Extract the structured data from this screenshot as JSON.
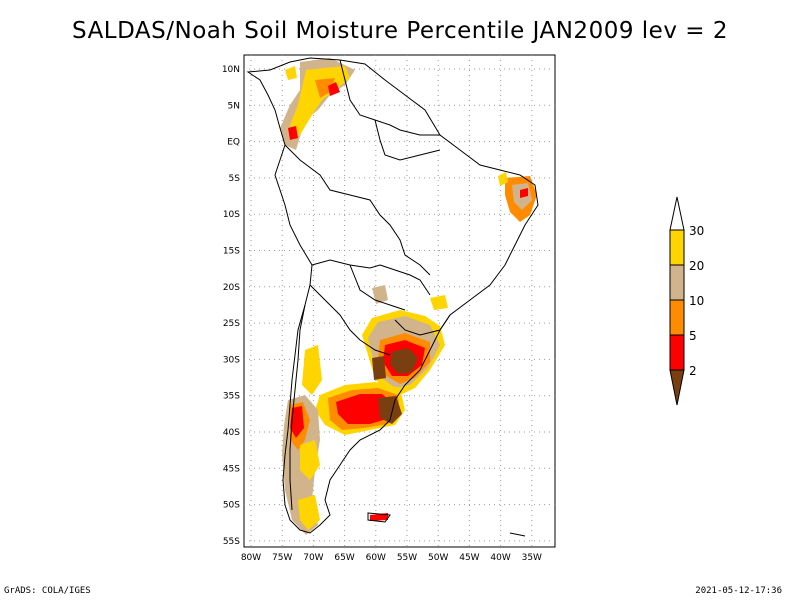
{
  "title": "SALDAS/Noah Soil Moisture Percentile JAN2009 lev = 2",
  "footer": {
    "left": "GrADS: COLA/IGES",
    "right": "2021-05-12-17:36"
  },
  "map": {
    "lon_range": [
      -81,
      -32
    ],
    "lat_range": [
      -56,
      12
    ],
    "lat_ticks": [
      "10N",
      "5N",
      "EQ",
      "5S",
      "10S",
      "15S",
      "20S",
      "25S",
      "30S",
      "35S",
      "40S",
      "45S",
      "50S",
      "55S"
    ],
    "lon_ticks": [
      "80W",
      "75W",
      "70W",
      "65W",
      "60W",
      "55W",
      "50W",
      "45W",
      "40W",
      "35W"
    ],
    "grid": true
  },
  "colorbar": {
    "levels": [
      "2",
      "5",
      "10",
      "20",
      "30"
    ],
    "colors": {
      "lt2": "#7a3f10",
      "2to5": "#ff0000",
      "5to10": "#ff8c00",
      "10to20": "#d2b48c",
      "20to30": "#ffd500",
      "gt30": "#ffffff"
    }
  },
  "colors": {
    "land_outline": "#000000",
    "grid": "#9a9a9a"
  }
}
